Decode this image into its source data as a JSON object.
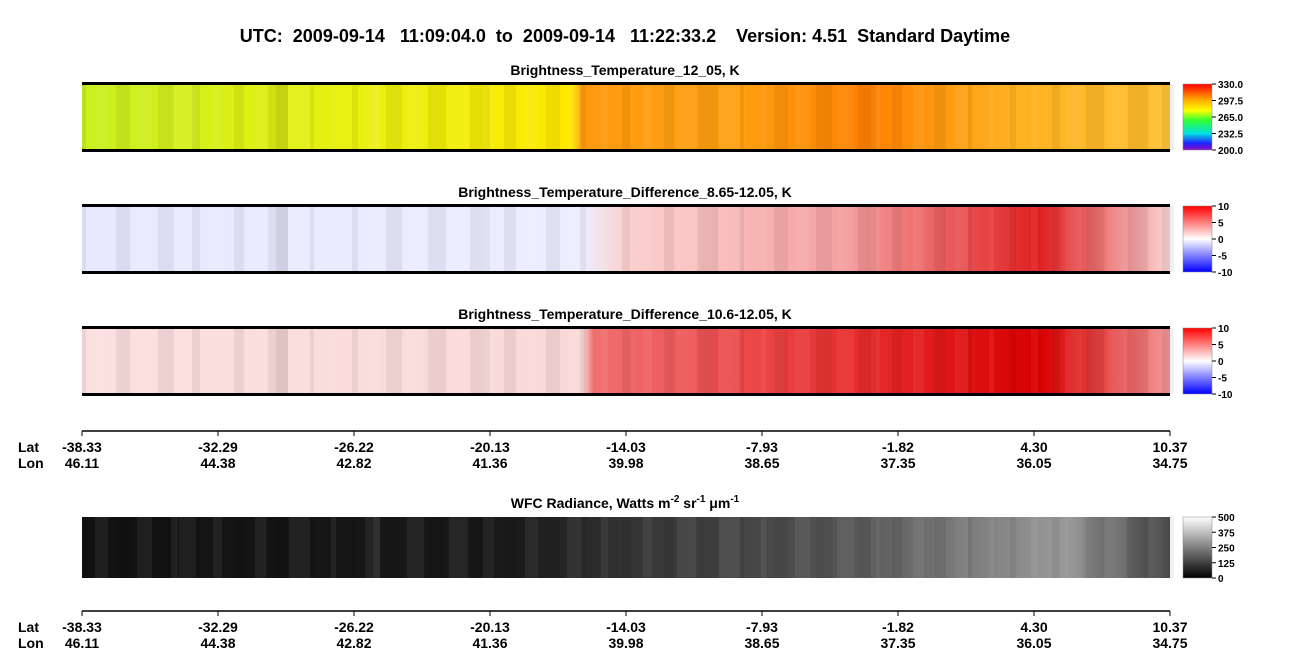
{
  "title": "UTC:  2009-09-14   11:09:04.0  to  2009-09-14   11:22:33.2    Version: 4.51  Standard Daytime",
  "panels": [
    {
      "title": "Brightness_Temperature_12_05, K",
      "colorbar": [
        "330.0",
        "297.5",
        "265.0",
        "232.5",
        "200.0"
      ]
    },
    {
      "title": "Brightness_Temperature_Difference_8.65-12.05, K",
      "colorbar": [
        "10",
        "5",
        "0",
        "-5",
        "-10"
      ]
    },
    {
      "title": "Brightness_Temperature_Difference_10.6-12.05, K",
      "colorbar": [
        "10",
        "5",
        "0",
        "-5",
        "-10"
      ]
    },
    {
      "title": [
        "WFC Radiance, Watts m",
        "-2",
        " sr",
        "-1",
        " μm",
        "-1"
      ],
      "colorbar": [
        "500",
        "375",
        "250",
        "125",
        "0"
      ]
    }
  ],
  "axes": [
    {
      "lat_label": "Lat",
      "lon_label": "Lon",
      "lat": [
        "-38.33",
        "-32.29",
        "-26.22",
        "-20.13",
        "-14.03",
        "-7.93",
        "-1.82",
        "4.30",
        "10.37"
      ],
      "lon": [
        "46.11",
        "44.38",
        "42.82",
        "41.36",
        "39.98",
        "38.65",
        "37.35",
        "36.05",
        "34.75"
      ]
    },
    {
      "lat_label": "Lat",
      "lon_label": "Lon",
      "lat": [
        "-38.33",
        "-32.29",
        "-26.22",
        "-20.13",
        "-14.03",
        "-7.93",
        "-1.82",
        "4.30",
        "10.37"
      ],
      "lon": [
        "46.11",
        "44.38",
        "42.82",
        "41.36",
        "39.98",
        "38.65",
        "37.35",
        "36.05",
        "34.75"
      ]
    }
  ]
}
